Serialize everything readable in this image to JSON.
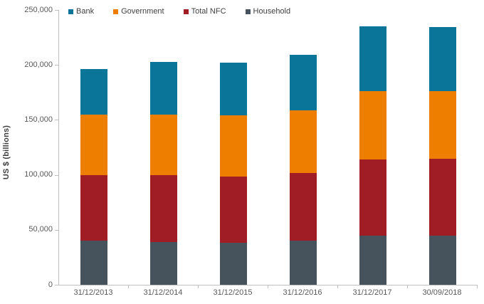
{
  "chart_data": {
    "type": "bar",
    "stacked": true,
    "title": "",
    "xlabel": "",
    "ylabel": "US $ (billions)",
    "ylim": [
      0,
      250000
    ],
    "ytick_interval": 50000,
    "ytick_labels": [
      "0",
      "50,000",
      "100,000",
      "150,000",
      "200,000",
      "250,000"
    ],
    "grid": false,
    "legend_position": "top",
    "legend_order": [
      "Bank",
      "Government",
      "Total NFC",
      "Household"
    ],
    "categories": [
      "31/12/2013",
      "31/12/2014",
      "31/12/2015",
      "31/12/2016",
      "31/12/2017",
      "30/09/2018"
    ],
    "series": [
      {
        "name": "Household",
        "color": "#46525c",
        "values": [
          40500,
          39000,
          38500,
          40000,
          44500,
          45000
        ]
      },
      {
        "name": "Total NFC",
        "color": "#a01d26",
        "values": [
          59500,
          60500,
          60000,
          62000,
          69500,
          69500
        ]
      },
      {
        "name": "Government",
        "color": "#ee7e00",
        "values": [
          55000,
          55500,
          55500,
          57000,
          62500,
          62000
        ]
      },
      {
        "name": "Bank",
        "color": "#0b7499",
        "values": [
          41000,
          47500,
          48000,
          50000,
          58500,
          58000
        ]
      }
    ]
  },
  "style": {
    "axis_color": "#bfbfbf",
    "tick_label_color": "#595959",
    "axis_title_color": "#3f3f3f",
    "legend_text_color": "#404040",
    "background": "#ffffff"
  }
}
